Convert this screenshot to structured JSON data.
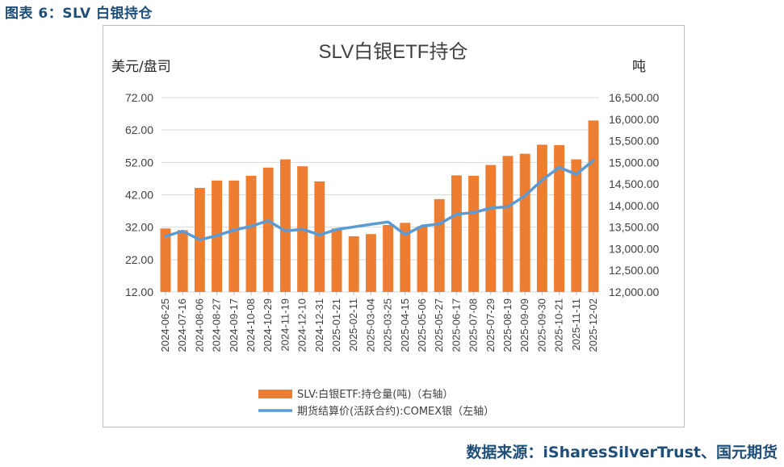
{
  "figure_label": "图表 6：SLV 白银持仓",
  "source": "数据来源：iSharesSilverTrust、国元期货",
  "colors": {
    "bar": "#ED7D31",
    "line": "#5B9BD5",
    "header": "#1F4E79",
    "grid": "#D9D9D9"
  },
  "chart_data": {
    "type": "bar+line",
    "title": "SLV白银ETF持仓",
    "y_left_label": "美元/盘司",
    "y_right_label": "吨",
    "y_left_range": [
      12,
      72
    ],
    "y_left_ticks": [
      "72.00",
      "62.00",
      "52.00",
      "42.00",
      "32.00",
      "22.00",
      "12.00"
    ],
    "y_right_range": [
      12000,
      16500
    ],
    "y_right_ticks": [
      "16,500.00",
      "16,000.00",
      "15,500.00",
      "15,000.00",
      "14,500.00",
      "14,000.00",
      "13,500.00",
      "13,000.00",
      "12,500.00",
      "12,000.00"
    ],
    "x_tick_labels": [
      "2024-06-25",
      "2024-07-16",
      "2024-08-06",
      "2024-08-27",
      "2024-09-17",
      "2024-10-08",
      "2024-10-29",
      "2024-11-19",
      "2024-12-10",
      "2024-12-31",
      "2025-01-21",
      "2025-02-11",
      "2025-03-04",
      "2025-03-25",
      "2025-04-15",
      "2025-05-06",
      "2025-05-27",
      "2025-06-17",
      "2025-07-08",
      "2025-07-29",
      "2025-08-19",
      "2025-09-09",
      "2025-09-30",
      "2025-10-21",
      "2025-11-11",
      "2025-12-02"
    ],
    "series": [
      {
        "name": "SLV:白银ETF:持仓量(吨)（右轴）",
        "type": "bar",
        "axis": "right",
        "values_by_tick": [
          13470,
          13430,
          14410,
          14580,
          14580,
          14690,
          14880,
          15070,
          14910,
          14560,
          13470,
          13290,
          13340,
          13550,
          13600,
          13520,
          14150,
          14700,
          14690,
          14940,
          15150,
          15200,
          15410,
          15400,
          15070,
          15970
        ]
      },
      {
        "name": "期货结算价(活跃合约):COMEX银（左轴）",
        "type": "line",
        "axis": "left",
        "values_by_tick": [
          29.2,
          30.8,
          28.1,
          29.4,
          31.1,
          32.3,
          34.0,
          30.8,
          31.4,
          29.6,
          31.3,
          32.1,
          32.9,
          33.6,
          29.7,
          32.4,
          33.0,
          36.0,
          36.5,
          37.9,
          38.3,
          41.7,
          46.5,
          50.5,
          48.3,
          52.6
        ]
      }
    ],
    "legend": [
      "SLV:白银ETF:持仓量(吨)（右轴）",
      "期货结算价(活跃合约):COMEX银（左轴）"
    ],
    "legend_position": "bottom"
  }
}
